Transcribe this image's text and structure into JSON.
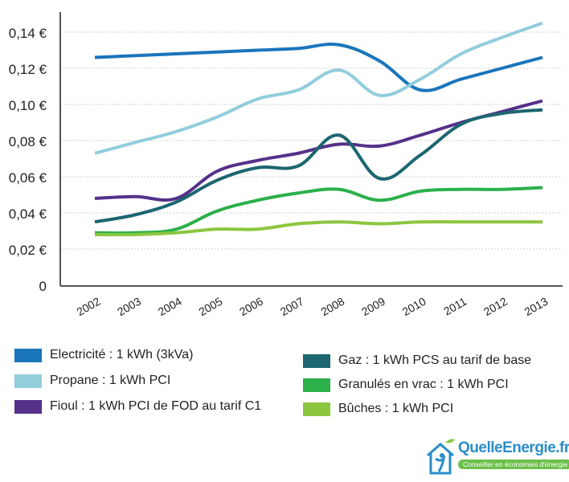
{
  "chart_data": {
    "type": "line",
    "categories": [
      "2002",
      "2003",
      "2004",
      "2005",
      "2006",
      "2007",
      "2008",
      "2009",
      "2010",
      "2011",
      "2012",
      "2013"
    ],
    "ylim": [
      0,
      0.14
    ],
    "yticks": [
      {
        "v": 0,
        "label": "0"
      },
      {
        "v": 0.02,
        "label": "0,02 €"
      },
      {
        "v": 0.04,
        "label": "0,04 €"
      },
      {
        "v": 0.06,
        "label": "0,06 €"
      },
      {
        "v": 0.08,
        "label": "0,08 €"
      },
      {
        "v": 0.1,
        "label": "0,10 €"
      },
      {
        "v": 0.12,
        "label": "0,12 €"
      },
      {
        "v": 0.14,
        "label": "0,14 €"
      }
    ],
    "grid": "horizontal dotted",
    "legend_placement": "bottom",
    "series": [
      {
        "name": "Electricité : 1 kWh (3kVa)",
        "color": "#1a75bb",
        "values": [
          0.126,
          0.127,
          0.128,
          0.129,
          0.13,
          0.131,
          0.133,
          0.124,
          0.108,
          0.114,
          0.12,
          0.126
        ]
      },
      {
        "name": "Propane : 1 kWh PCI",
        "color": "#92cddc",
        "values": [
          0.073,
          0.079,
          0.085,
          0.093,
          0.103,
          0.108,
          0.119,
          0.105,
          0.114,
          0.128,
          0.137,
          0.145
        ]
      },
      {
        "name": "Fioul : 1 kWh PCI de FOD au tarif C1",
        "color": "#55318a",
        "values": [
          0.048,
          0.049,
          0.048,
          0.063,
          0.069,
          0.073,
          0.078,
          0.077,
          0.083,
          0.09,
          0.096,
          0.102
        ]
      },
      {
        "name": "Gaz : 1 kWh PCS au tarif de base",
        "color": "#1c6670",
        "values": [
          0.035,
          0.039,
          0.046,
          0.058,
          0.065,
          0.066,
          0.083,
          0.059,
          0.072,
          0.089,
          0.095,
          0.097
        ]
      },
      {
        "name": "Granulés en vrac : 1 kWh PCI",
        "color": "#2bb04a",
        "values": [
          0.029,
          0.029,
          0.031,
          0.041,
          0.047,
          0.051,
          0.053,
          0.047,
          0.052,
          0.053,
          0.053,
          0.054
        ]
      },
      {
        "name": "Bûches : 1 kWh PCI",
        "color": "#8cc63f",
        "values": [
          0.028,
          0.028,
          0.029,
          0.031,
          0.031,
          0.034,
          0.035,
          0.034,
          0.035,
          0.035,
          0.035,
          0.035
        ]
      }
    ]
  },
  "logo": {
    "brand": "QuelleEnergie.fr",
    "tagline": "Conseiller en économies d'énergie"
  }
}
